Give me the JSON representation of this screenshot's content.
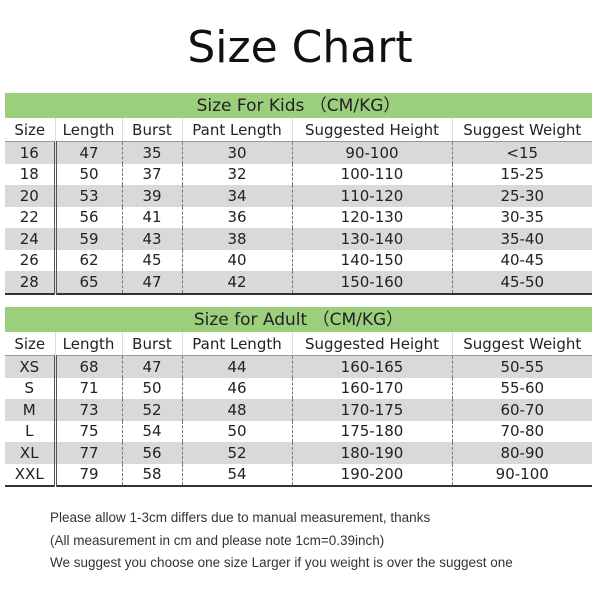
{
  "title": "Size Chart",
  "columns": [
    "Size",
    "Length",
    "Burst",
    "Pant Length",
    "Suggested Height",
    "Suggest Weight"
  ],
  "kids": {
    "heading": "Size For Kids （CM/KG）",
    "rows": [
      [
        "16",
        "47",
        "35",
        "30",
        "90-100",
        "<15"
      ],
      [
        "18",
        "50",
        "37",
        "32",
        "100-110",
        "15-25"
      ],
      [
        "20",
        "53",
        "39",
        "34",
        "110-120",
        "25-30"
      ],
      [
        "22",
        "56",
        "41",
        "36",
        "120-130",
        "30-35"
      ],
      [
        "24",
        "59",
        "43",
        "38",
        "130-140",
        "35-40"
      ],
      [
        "26",
        "62",
        "45",
        "40",
        "140-150",
        "40-45"
      ],
      [
        "28",
        "65",
        "47",
        "42",
        "150-160",
        "45-50"
      ]
    ]
  },
  "adult": {
    "heading": "Size for Adult （CM/KG）",
    "rows": [
      [
        "XS",
        "68",
        "47",
        "44",
        "160-165",
        "50-55"
      ],
      [
        "S",
        "71",
        "50",
        "46",
        "160-170",
        "55-60"
      ],
      [
        "M",
        "73",
        "52",
        "48",
        "170-175",
        "60-70"
      ],
      [
        "L",
        "75",
        "54",
        "50",
        "175-180",
        "70-80"
      ],
      [
        "XL",
        "77",
        "56",
        "52",
        "180-190",
        "80-90"
      ],
      [
        "XXL",
        "79",
        "58",
        "54",
        "190-200",
        "90-100"
      ]
    ]
  },
  "notes": [
    "Please allow 1-3cm differs due to manual measurement, thanks",
    "(All measurement in cm and please note 1cm=0.39inch)",
    "We suggest you choose one size Larger if you weight is over the suggest one"
  ],
  "colors": {
    "band": "#9ccf7c",
    "stripe": "#d9d9d9"
  }
}
